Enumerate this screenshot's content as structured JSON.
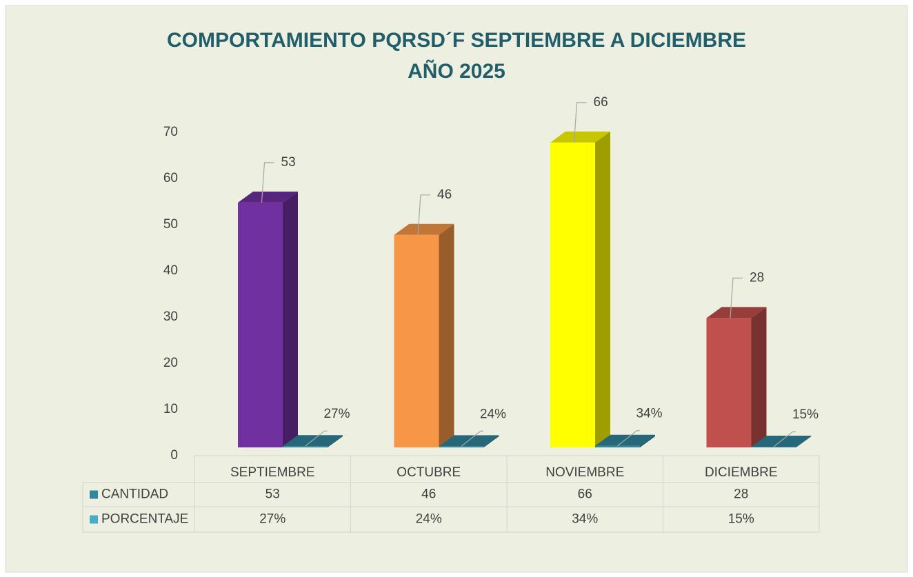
{
  "chart_data": {
    "type": "bar3d",
    "title": "COMPORTAMIENTO PQRSD´F SEPTIEMBRE A DICIEMBRE",
    "subtitle": "AÑO 2025",
    "categories": [
      "SEPTIEMBRE",
      "OCTUBRE",
      "NOVIEMBRE",
      "DICIEMBRE"
    ],
    "series": [
      {
        "name": "CANTIDAD",
        "color": "#31859c",
        "colors": [
          "#7030a0",
          "#f79646",
          "#ffff00",
          "#c0504d"
        ],
        "values": [
          53,
          46,
          66,
          28
        ]
      },
      {
        "name": "PORCENTAJE",
        "color": "#4bacc6",
        "values": [
          0.27,
          0.24,
          0.34,
          0.15
        ],
        "value_labels": [
          "27%",
          "24%",
          "34%",
          "15%"
        ]
      }
    ],
    "ylim": [
      0,
      70
    ],
    "yticks": [
      0,
      10,
      20,
      30,
      40,
      50,
      60,
      70
    ],
    "grid": false,
    "data_table": true
  }
}
